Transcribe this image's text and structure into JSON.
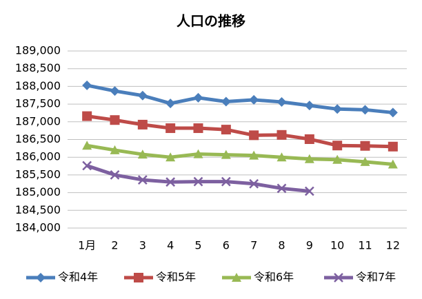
{
  "chart_data": {
    "type": "line",
    "title": "人口の推移",
    "categories": [
      "1月",
      "2",
      "3",
      "4",
      "5",
      "6",
      "7",
      "8",
      "9",
      "10",
      "11",
      "12"
    ],
    "series": [
      {
        "name": "令和4年",
        "color": "#4a7ebb",
        "marker": "diamond",
        "values": [
          188030,
          187870,
          187740,
          187520,
          187680,
          187570,
          187620,
          187560,
          187460,
          187360,
          187340,
          187260
        ]
      },
      {
        "name": "令和5年",
        "color": "#be4b48",
        "marker": "square",
        "values": [
          187160,
          187050,
          186920,
          186820,
          186820,
          186780,
          186620,
          186630,
          186510,
          186330,
          186320,
          186300
        ]
      },
      {
        "name": "令和6年",
        "color": "#98b954",
        "marker": "triangle",
        "values": [
          186330,
          186200,
          186080,
          186000,
          186090,
          186070,
          186050,
          186000,
          185950,
          185930,
          185870,
          185800
        ]
      },
      {
        "name": "令和7年",
        "color": "#7d60a0",
        "marker": "x",
        "values": [
          185760,
          185500,
          185360,
          185300,
          185310,
          185310,
          185250,
          185120,
          185040,
          null,
          null,
          null
        ]
      }
    ],
    "ylim": [
      184000,
      189000
    ],
    "yticks": [
      {
        "value": 184000,
        "label": "184,000"
      },
      {
        "value": 184500,
        "label": "184,500"
      },
      {
        "value": 185000,
        "label": "185,000"
      },
      {
        "value": 185500,
        "label": "185,500"
      },
      {
        "value": 186000,
        "label": "186,000"
      },
      {
        "value": 186500,
        "label": "186,500"
      },
      {
        "value": 187000,
        "label": "187,000"
      },
      {
        "value": 187500,
        "label": "187,500"
      },
      {
        "value": 188000,
        "label": "188,000"
      },
      {
        "value": 188500,
        "label": "188,500"
      },
      {
        "value": 189000,
        "label": "189,000"
      }
    ],
    "grid": true,
    "legend": "bottom"
  }
}
